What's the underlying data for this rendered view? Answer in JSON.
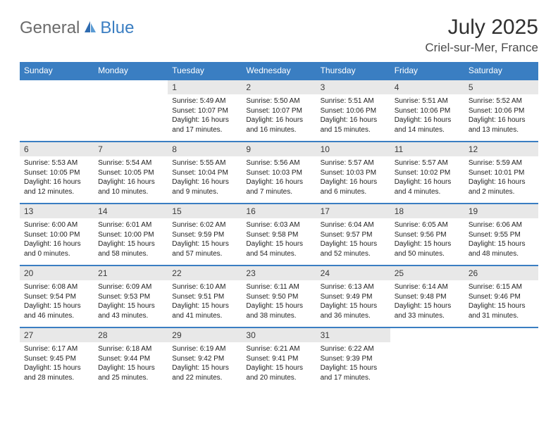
{
  "logo": {
    "part1": "General",
    "part2": "Blue"
  },
  "title": "July 2025",
  "location": "Criel-sur-Mer, France",
  "weekday_headers": [
    "Sunday",
    "Monday",
    "Tuesday",
    "Wednesday",
    "Thursday",
    "Friday",
    "Saturday"
  ],
  "colors": {
    "header_bg": "#3a7ec2",
    "header_text": "#ffffff",
    "daynum_bg": "#e8e8e8",
    "border": "#3a7ec2",
    "title_color": "#303030",
    "logo_gray": "#6b6b6b",
    "logo_blue": "#3a7ec2"
  },
  "fonts": {
    "title_size_pt": 22,
    "location_size_pt": 13,
    "header_size_pt": 9,
    "daynum_size_pt": 9,
    "body_size_pt": 7.5
  },
  "grid": [
    [
      {
        "empty": true
      },
      {
        "empty": true
      },
      {
        "day": "1",
        "sunrise": "Sunrise: 5:49 AM",
        "sunset": "Sunset: 10:07 PM",
        "daylight": "Daylight: 16 hours and 17 minutes."
      },
      {
        "day": "2",
        "sunrise": "Sunrise: 5:50 AM",
        "sunset": "Sunset: 10:07 PM",
        "daylight": "Daylight: 16 hours and 16 minutes."
      },
      {
        "day": "3",
        "sunrise": "Sunrise: 5:51 AM",
        "sunset": "Sunset: 10:06 PM",
        "daylight": "Daylight: 16 hours and 15 minutes."
      },
      {
        "day": "4",
        "sunrise": "Sunrise: 5:51 AM",
        "sunset": "Sunset: 10:06 PM",
        "daylight": "Daylight: 16 hours and 14 minutes."
      },
      {
        "day": "5",
        "sunrise": "Sunrise: 5:52 AM",
        "sunset": "Sunset: 10:06 PM",
        "daylight": "Daylight: 16 hours and 13 minutes."
      }
    ],
    [
      {
        "day": "6",
        "sunrise": "Sunrise: 5:53 AM",
        "sunset": "Sunset: 10:05 PM",
        "daylight": "Daylight: 16 hours and 12 minutes."
      },
      {
        "day": "7",
        "sunrise": "Sunrise: 5:54 AM",
        "sunset": "Sunset: 10:05 PM",
        "daylight": "Daylight: 16 hours and 10 minutes."
      },
      {
        "day": "8",
        "sunrise": "Sunrise: 5:55 AM",
        "sunset": "Sunset: 10:04 PM",
        "daylight": "Daylight: 16 hours and 9 minutes."
      },
      {
        "day": "9",
        "sunrise": "Sunrise: 5:56 AM",
        "sunset": "Sunset: 10:03 PM",
        "daylight": "Daylight: 16 hours and 7 minutes."
      },
      {
        "day": "10",
        "sunrise": "Sunrise: 5:57 AM",
        "sunset": "Sunset: 10:03 PM",
        "daylight": "Daylight: 16 hours and 6 minutes."
      },
      {
        "day": "11",
        "sunrise": "Sunrise: 5:57 AM",
        "sunset": "Sunset: 10:02 PM",
        "daylight": "Daylight: 16 hours and 4 minutes."
      },
      {
        "day": "12",
        "sunrise": "Sunrise: 5:59 AM",
        "sunset": "Sunset: 10:01 PM",
        "daylight": "Daylight: 16 hours and 2 minutes."
      }
    ],
    [
      {
        "day": "13",
        "sunrise": "Sunrise: 6:00 AM",
        "sunset": "Sunset: 10:00 PM",
        "daylight": "Daylight: 16 hours and 0 minutes."
      },
      {
        "day": "14",
        "sunrise": "Sunrise: 6:01 AM",
        "sunset": "Sunset: 10:00 PM",
        "daylight": "Daylight: 15 hours and 58 minutes."
      },
      {
        "day": "15",
        "sunrise": "Sunrise: 6:02 AM",
        "sunset": "Sunset: 9:59 PM",
        "daylight": "Daylight: 15 hours and 57 minutes."
      },
      {
        "day": "16",
        "sunrise": "Sunrise: 6:03 AM",
        "sunset": "Sunset: 9:58 PM",
        "daylight": "Daylight: 15 hours and 54 minutes."
      },
      {
        "day": "17",
        "sunrise": "Sunrise: 6:04 AM",
        "sunset": "Sunset: 9:57 PM",
        "daylight": "Daylight: 15 hours and 52 minutes."
      },
      {
        "day": "18",
        "sunrise": "Sunrise: 6:05 AM",
        "sunset": "Sunset: 9:56 PM",
        "daylight": "Daylight: 15 hours and 50 minutes."
      },
      {
        "day": "19",
        "sunrise": "Sunrise: 6:06 AM",
        "sunset": "Sunset: 9:55 PM",
        "daylight": "Daylight: 15 hours and 48 minutes."
      }
    ],
    [
      {
        "day": "20",
        "sunrise": "Sunrise: 6:08 AM",
        "sunset": "Sunset: 9:54 PM",
        "daylight": "Daylight: 15 hours and 46 minutes."
      },
      {
        "day": "21",
        "sunrise": "Sunrise: 6:09 AM",
        "sunset": "Sunset: 9:53 PM",
        "daylight": "Daylight: 15 hours and 43 minutes."
      },
      {
        "day": "22",
        "sunrise": "Sunrise: 6:10 AM",
        "sunset": "Sunset: 9:51 PM",
        "daylight": "Daylight: 15 hours and 41 minutes."
      },
      {
        "day": "23",
        "sunrise": "Sunrise: 6:11 AM",
        "sunset": "Sunset: 9:50 PM",
        "daylight": "Daylight: 15 hours and 38 minutes."
      },
      {
        "day": "24",
        "sunrise": "Sunrise: 6:13 AM",
        "sunset": "Sunset: 9:49 PM",
        "daylight": "Daylight: 15 hours and 36 minutes."
      },
      {
        "day": "25",
        "sunrise": "Sunrise: 6:14 AM",
        "sunset": "Sunset: 9:48 PM",
        "daylight": "Daylight: 15 hours and 33 minutes."
      },
      {
        "day": "26",
        "sunrise": "Sunrise: 6:15 AM",
        "sunset": "Sunset: 9:46 PM",
        "daylight": "Daylight: 15 hours and 31 minutes."
      }
    ],
    [
      {
        "day": "27",
        "sunrise": "Sunrise: 6:17 AM",
        "sunset": "Sunset: 9:45 PM",
        "daylight": "Daylight: 15 hours and 28 minutes."
      },
      {
        "day": "28",
        "sunrise": "Sunrise: 6:18 AM",
        "sunset": "Sunset: 9:44 PM",
        "daylight": "Daylight: 15 hours and 25 minutes."
      },
      {
        "day": "29",
        "sunrise": "Sunrise: 6:19 AM",
        "sunset": "Sunset: 9:42 PM",
        "daylight": "Daylight: 15 hours and 22 minutes."
      },
      {
        "day": "30",
        "sunrise": "Sunrise: 6:21 AM",
        "sunset": "Sunset: 9:41 PM",
        "daylight": "Daylight: 15 hours and 20 minutes."
      },
      {
        "day": "31",
        "sunrise": "Sunrise: 6:22 AM",
        "sunset": "Sunset: 9:39 PM",
        "daylight": "Daylight: 15 hours and 17 minutes."
      },
      {
        "empty": true
      },
      {
        "empty": true
      }
    ]
  ]
}
